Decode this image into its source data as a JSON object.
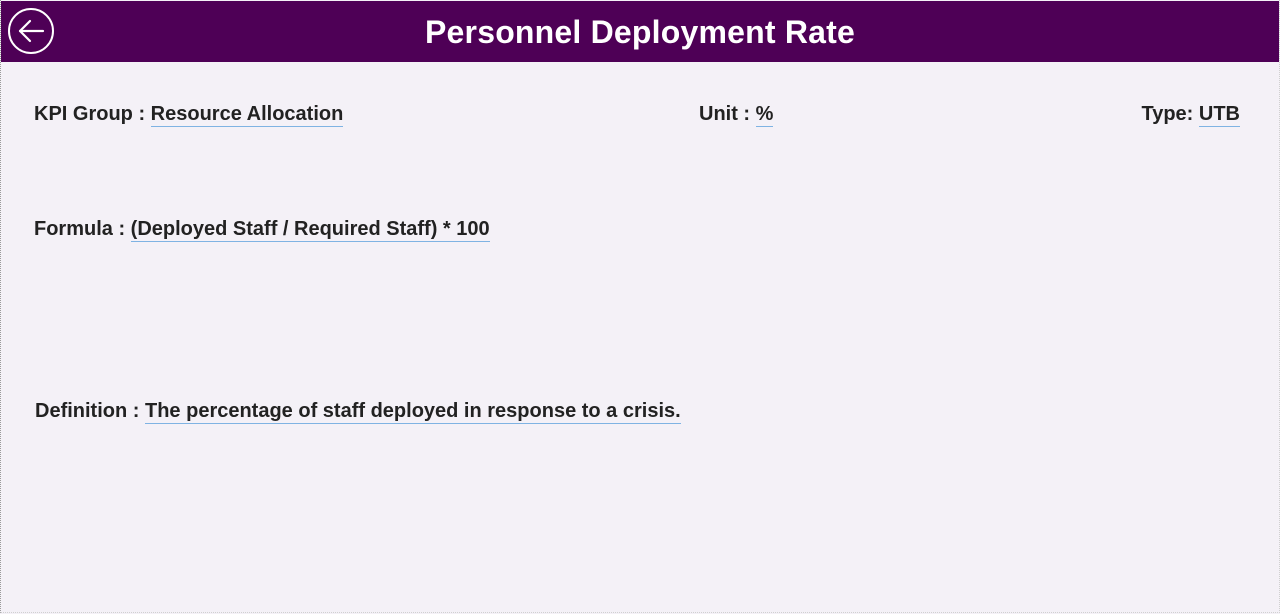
{
  "header": {
    "title": "Personnel Deployment Rate",
    "back_icon": "arrow-left-icon",
    "background_color": "#4e0056"
  },
  "kpi": {
    "group_label": "KPI Group : ",
    "group_value": "Resource Allocation",
    "unit_label": "Unit : ",
    "unit_value": "%",
    "type_label": "Type: ",
    "type_value": "UTB",
    "formula_label": "Formula : ",
    "formula_value": "(Deployed Staff / Required Staff) * 100",
    "definition_label": "Definition : ",
    "definition_value": "The percentage of staff deployed in response to a crisis."
  }
}
